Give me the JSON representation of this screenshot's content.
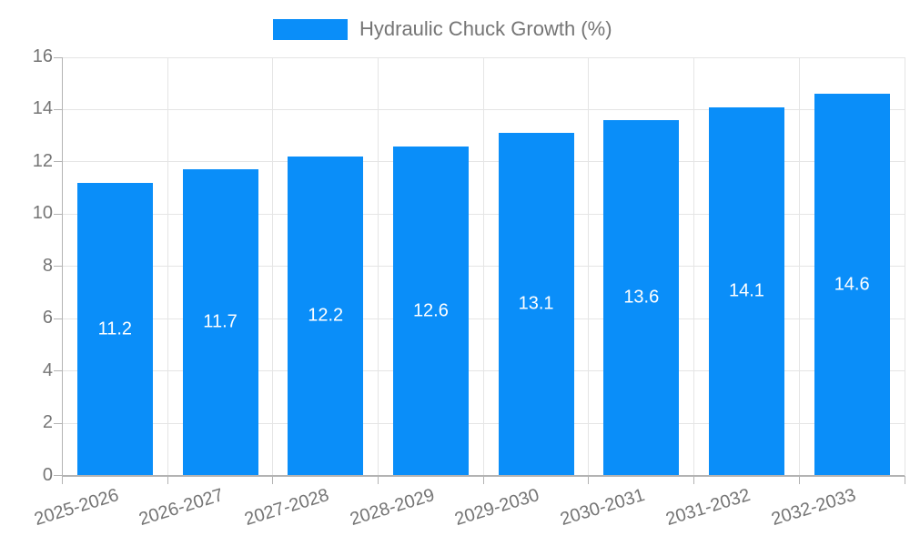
{
  "chart_data": {
    "type": "bar",
    "title": "Hydraulic Chuck Growth (%)",
    "legend": {
      "position": "top",
      "label": "Hydraulic Chuck Growth (%)"
    },
    "categories": [
      "2025-2026",
      "2026-2027",
      "2027-2028",
      "2028-2029",
      "2029-2030",
      "2030-2031",
      "2031-2032",
      "2032-2033"
    ],
    "values": [
      11.2,
      11.7,
      12.2,
      12.6,
      13.1,
      13.6,
      14.1,
      14.6
    ],
    "value_labels": [
      "11.2",
      "11.7",
      "12.2",
      "12.6",
      "13.1",
      "13.6",
      "14.1",
      "14.6"
    ],
    "xlabel": "",
    "ylabel": "",
    "ylim": [
      0,
      16
    ],
    "yticks": [
      0,
      2,
      4,
      6,
      8,
      10,
      12,
      14,
      16
    ],
    "grid": true,
    "colors": {
      "bar": "#0A8EF9",
      "grid": "#e5e5e5",
      "axis": "#b3b3b3",
      "tick_text": "#757575",
      "legend_text": "#757575",
      "value_text": "#ffffff",
      "background": "#ffffff"
    }
  }
}
